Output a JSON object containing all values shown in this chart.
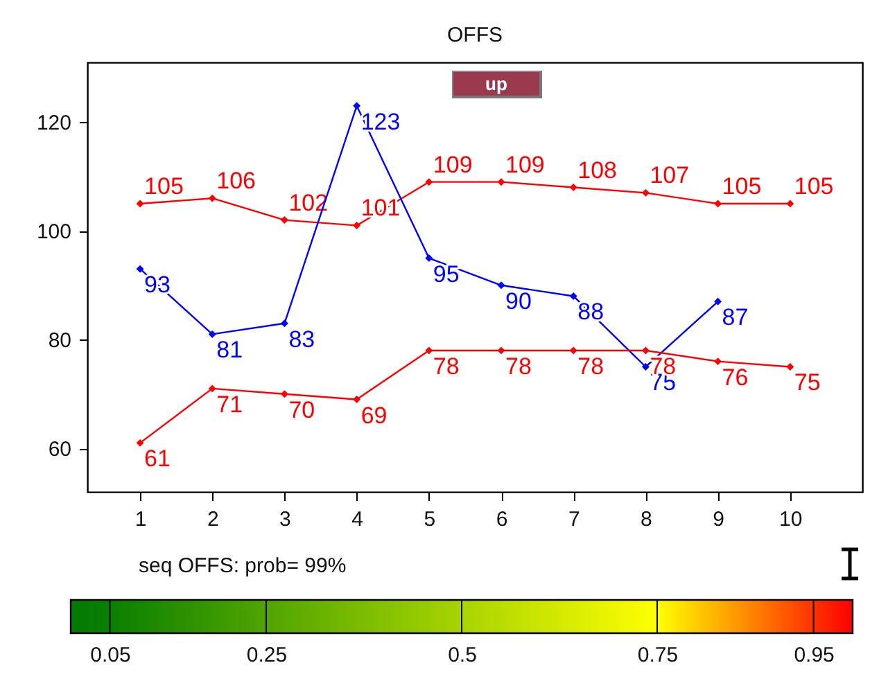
{
  "chart_data": {
    "type": "line",
    "title": "OFFS",
    "x": [
      1,
      2,
      3,
      4,
      5,
      6,
      7,
      8,
      9,
      10
    ],
    "series": [
      {
        "color": "#ff0000",
        "values": [
          105,
          106,
          102,
          101,
          109,
          109,
          108,
          107,
          105,
          105
        ]
      },
      {
        "color": "#0000ff",
        "values": [
          93,
          81,
          83,
          123,
          95,
          90,
          88,
          75,
          87,
          null
        ]
      },
      {
        "color": "#ff0000",
        "values": [
          61,
          71,
          70,
          69,
          78,
          78,
          78,
          78,
          76,
          75
        ]
      }
    ],
    "xlim": [
      0.27,
      11
    ],
    "xticks": [
      1,
      2,
      3,
      4,
      5,
      6,
      7,
      8,
      9,
      10
    ],
    "ylim": [
      52,
      131
    ],
    "yticks": [
      60,
      80,
      100,
      120
    ],
    "clim": [
      0,
      1
    ],
    "cticks": [
      0.05,
      0.25,
      0.5,
      0.75,
      0.95
    ],
    "annotations": [
      "up",
      "seq OFFS: prob= 99%"
    ],
    "data_labels": true,
    "marker": "diamond",
    "line_style": "solid",
    "grid": false
  }
}
